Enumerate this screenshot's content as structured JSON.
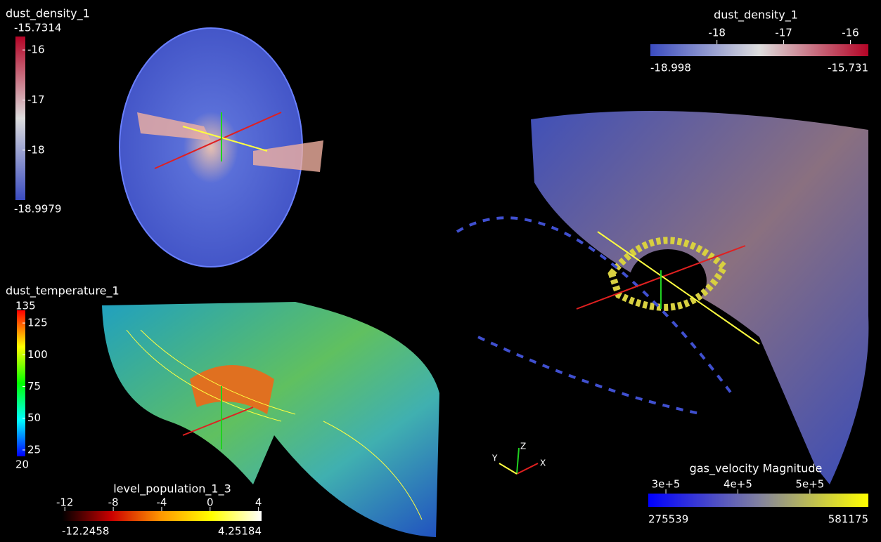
{
  "colorbars": [
    {
      "title": "dust_density_1",
      "min": -18.9979,
      "max": -15.7314,
      "ticks": [
        -16,
        -17,
        -18
      ],
      "colors": [
        "#3b4cc0",
        "#dddddd",
        "#b40426"
      ]
    },
    {
      "title": "dust_density_1",
      "min": -18.998,
      "max": -15.731,
      "ticks": [
        -18,
        -17,
        -16
      ],
      "colors": [
        "#3b4cc0",
        "#dddddd",
        "#b40426"
      ]
    },
    {
      "title": "dust_temperature_1",
      "min": 20,
      "max": 135,
      "ticks": [
        125,
        100,
        75,
        50,
        25
      ],
      "colors": [
        "#0000ff",
        "#00ffff",
        "#00ff00",
        "#ffff00",
        "#ff0000"
      ]
    },
    {
      "title": "level_population_1_3",
      "min": -12.2458,
      "max": 4.25184,
      "ticks": [
        -12,
        -8,
        -4,
        0,
        4
      ],
      "colors": [
        "#000000",
        "#cc0000",
        "#ff9900",
        "#ffff00",
        "#ffffff"
      ]
    },
    {
      "title": "gas_velocity Magnitude",
      "min": 275539,
      "max": 581175,
      "ticks": [
        {
          "value": 300000,
          "label": "3e+5"
        },
        {
          "value": 400000,
          "label": "4e+5"
        },
        {
          "value": 500000,
          "label": "5e+5"
        }
      ],
      "colors": [
        "#0000ff",
        "#8080a0",
        "#ffff00"
      ]
    }
  ],
  "axis_triad": {
    "x": "X",
    "y": "Y",
    "z": "Z"
  }
}
